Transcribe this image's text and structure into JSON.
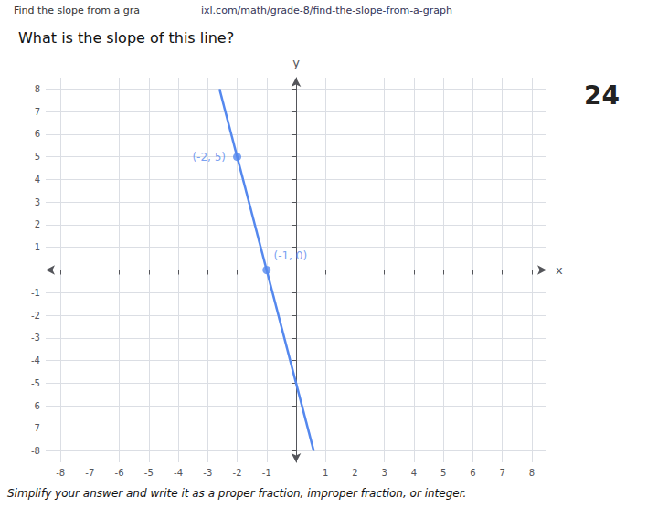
{
  "chart_data": {
    "type": "line",
    "title": "What is the slope of this line?",
    "x_label": "x",
    "y_label": "y",
    "xlim": [
      -8.5,
      8.5
    ],
    "ylim": [
      -8.5,
      8.5
    ],
    "xticks": [
      -8,
      -7,
      -6,
      -5,
      -4,
      -3,
      -2,
      -1,
      1,
      2,
      3,
      4,
      5,
      6,
      7,
      8
    ],
    "yticks": [
      -8,
      -7,
      -6,
      -5,
      -4,
      -3,
      -2,
      -1,
      1,
      2,
      3,
      4,
      5,
      6,
      7,
      8
    ],
    "grid": true,
    "series": [
      {
        "type": "line",
        "color": "#5588ee",
        "x": [
          -2.6,
          0.6
        ],
        "values": [
          8,
          -8
        ]
      },
      {
        "type": "scatter",
        "color": "#5588ee",
        "x": [
          -2,
          -1
        ],
        "values": [
          5,
          0
        ],
        "value_labels": [
          "(-2, 5)",
          "(-1, 0)"
        ]
      }
    ],
    "annotations": [
      "Find the slope from a gra",
      "ixl.com/math/grade-8/find-the-slope-from-a-graph",
      "24",
      "Simplify your answer and write it as a proper fraction, improper fraction, or integer."
    ]
  }
}
